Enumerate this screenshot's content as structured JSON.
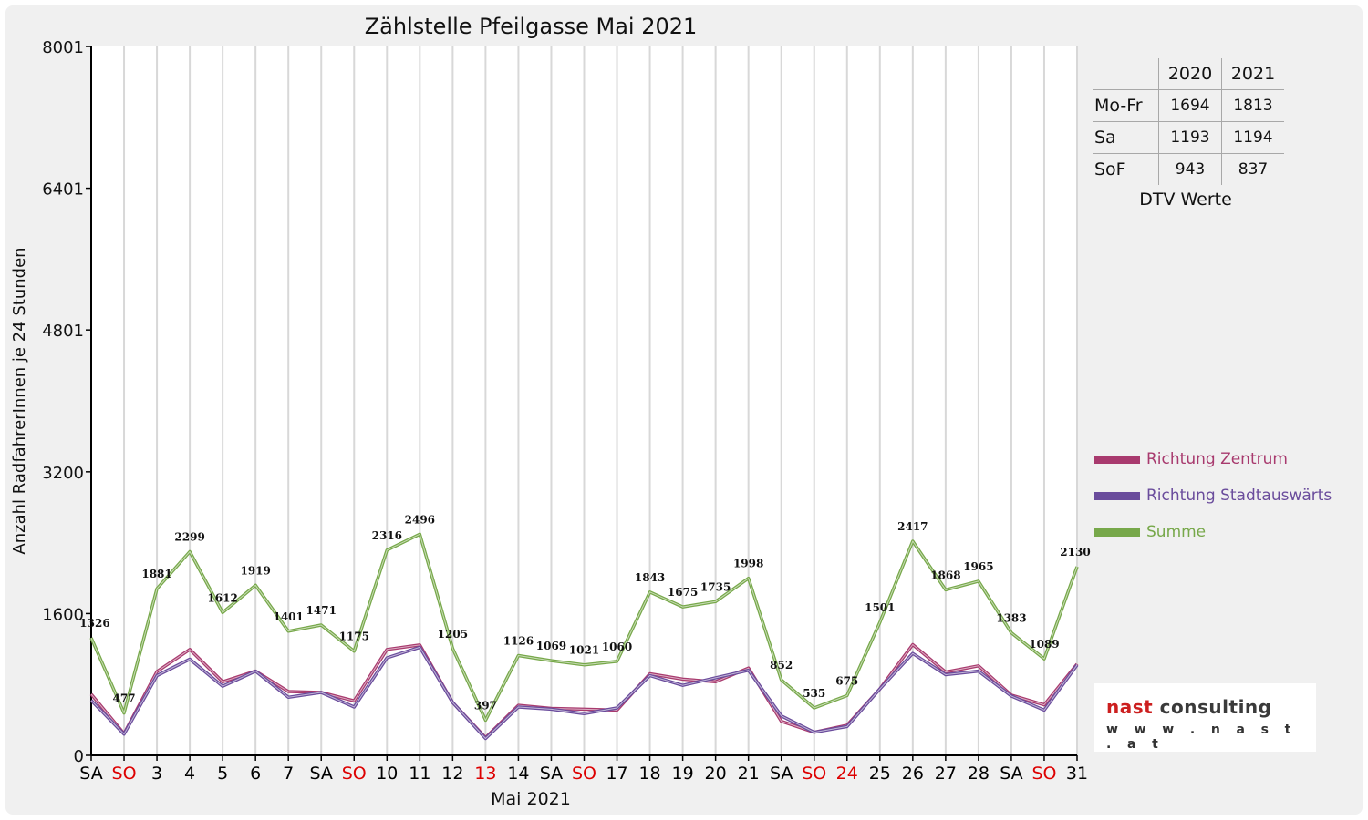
{
  "chart_data": {
    "type": "line",
    "title": "Zählstelle Pfeilgasse Mai 2021",
    "xlabel": "Mai 2021",
    "ylabel": "Anzahl RadfahrerInnen je 24 Stunden",
    "ylim": [
      0,
      8001
    ],
    "yticks": [
      "0",
      "1600",
      "3200",
      "4801",
      "6401",
      "8001"
    ],
    "ytick_values": [
      0,
      1600,
      3200,
      4801,
      6401,
      8001
    ],
    "categories": [
      "SA",
      "SO",
      "3",
      "4",
      "5",
      "6",
      "7",
      "SA",
      "SO",
      "10",
      "11",
      "12",
      "13",
      "14",
      "SA",
      "SO",
      "17",
      "18",
      "19",
      "20",
      "21",
      "SA",
      "SO",
      "24",
      "25",
      "26",
      "27",
      "28",
      "SA",
      "SO",
      "31"
    ],
    "category_colors": [
      "#000000",
      "#dd0000",
      "#000000",
      "#000000",
      "#000000",
      "#000000",
      "#000000",
      "#000000",
      "#dd0000",
      "#000000",
      "#000000",
      "#000000",
      "#dd0000",
      "#000000",
      "#000000",
      "#dd0000",
      "#000000",
      "#000000",
      "#000000",
      "#000000",
      "#000000",
      "#000000",
      "#dd0000",
      "#dd0000",
      "#000000",
      "#000000",
      "#000000",
      "#000000",
      "#000000",
      "#dd0000",
      "#000000"
    ],
    "grid": "vertical",
    "series": [
      {
        "name": "Richtung Zentrum",
        "color": "#a83a6e",
        "values": [
          690,
          245,
          945,
          1195,
          830,
          950,
          720,
          710,
          615,
          1195,
          1245,
          595,
          200,
          565,
          530,
          520,
          510,
          920,
          860,
          830,
          985,
          385,
          260,
          340,
          750,
          1250,
          940,
          1010,
          680,
          570,
          1030
        ]
      },
      {
        "name": "Richtung Stadtauswärts",
        "color": "#6a4c9c",
        "values": [
          620,
          240,
          900,
          1085,
          780,
          950,
          655,
          710,
          545,
          1100,
          1220,
          595,
          190,
          545,
          520,
          470,
          535,
          900,
          790,
          875,
          960,
          445,
          260,
          325,
          750,
          1150,
          910,
          950,
          670,
          510,
          1020
        ]
      },
      {
        "name": "Summe",
        "color": "#77a84a",
        "values": [
          1326,
          477,
          1881,
          2299,
          1612,
          1919,
          1401,
          1471,
          1175,
          2316,
          2496,
          1205,
          397,
          1126,
          1069,
          1021,
          1060,
          1843,
          1675,
          1735,
          1998,
          852,
          535,
          675,
          1501,
          2417,
          1868,
          1965,
          1383,
          1089,
          2130
        ]
      }
    ],
    "data_labels": [
      "1326",
      "477",
      "1881",
      "2299",
      "1612",
      "1919",
      "1401",
      "1471",
      "1175",
      "2316",
      "2496",
      "1205",
      "397",
      "1126",
      "1069",
      "1021",
      "1060",
      "1843",
      "1675",
      "1735",
      "1998",
      "852",
      "535",
      "675",
      "1501",
      "2417",
      "1868",
      "1965",
      "1383",
      "1089",
      "2130"
    ],
    "legend_position": "right"
  },
  "dtv_table": {
    "caption": "DTV Werte",
    "col_headers": [
      "2020",
      "2021"
    ],
    "rows": [
      {
        "label": "Mo-Fr",
        "v2020": "1694",
        "v2021": "1813"
      },
      {
        "label": "Sa",
        "v2020": "1193",
        "v2021": "1194"
      },
      {
        "label": "SoF",
        "v2020": "943",
        "v2021": "837"
      }
    ]
  },
  "legend": [
    {
      "label": "Richtung Zentrum",
      "color": "#a83a6e"
    },
    {
      "label": "Richtung Stadtauswärts",
      "color": "#6a4c9c"
    },
    {
      "label": "Summe",
      "color": "#77a84a"
    }
  ],
  "logo": {
    "word1": "nast",
    "word2": "consulting",
    "url_text": "w w w . n a s t . a t",
    "color1": "#cc1f1f",
    "color2": "#3a3a3a"
  }
}
